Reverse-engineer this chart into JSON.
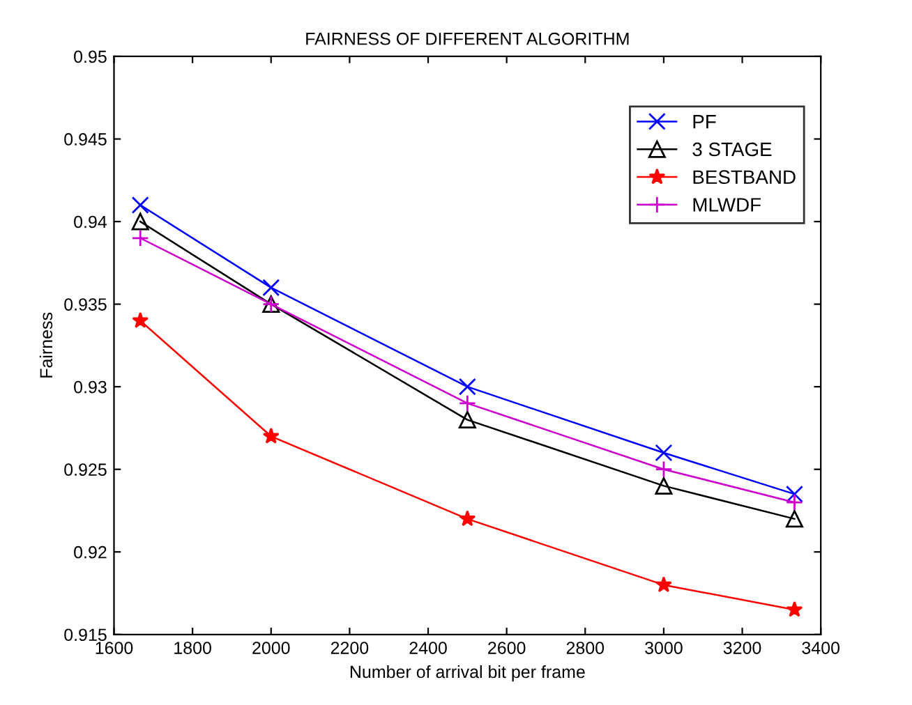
{
  "chart_data": {
    "type": "line",
    "title": "FAIRNESS OF DIFFERENT ALGORITHM",
    "xlabel": "Number of arrival bit per frame",
    "ylabel": "Fairness",
    "x": [
      1667,
      2000,
      2500,
      3000,
      3333
    ],
    "series": [
      {
        "name": "PF",
        "color": "#0000ff",
        "marker": "cross",
        "values": [
          0.941,
          0.936,
          0.93,
          0.926,
          0.9235
        ]
      },
      {
        "name": "3 STAGE",
        "color": "#000000",
        "marker": "triangle",
        "values": [
          0.94,
          0.935,
          0.928,
          0.924,
          0.922
        ]
      },
      {
        "name": "BESTBAND",
        "color": "#ff0000",
        "marker": "star",
        "values": [
          0.934,
          0.927,
          0.922,
          0.918,
          0.9165
        ]
      },
      {
        "name": "MLWDF",
        "color": "#cc00cc",
        "marker": "plus",
        "values": [
          0.939,
          0.935,
          0.929,
          0.925,
          0.923
        ]
      }
    ],
    "xlim": [
      1600,
      3400
    ],
    "xticks": [
      1600,
      1800,
      2000,
      2200,
      2400,
      2600,
      2800,
      3000,
      3200,
      3400
    ],
    "ylim": [
      0.915,
      0.95
    ],
    "yticks": [
      0.915,
      0.92,
      0.925,
      0.93,
      0.935,
      0.94,
      0.945,
      0.95
    ],
    "grid": false,
    "legend": "top right",
    "line_style": "solid"
  }
}
